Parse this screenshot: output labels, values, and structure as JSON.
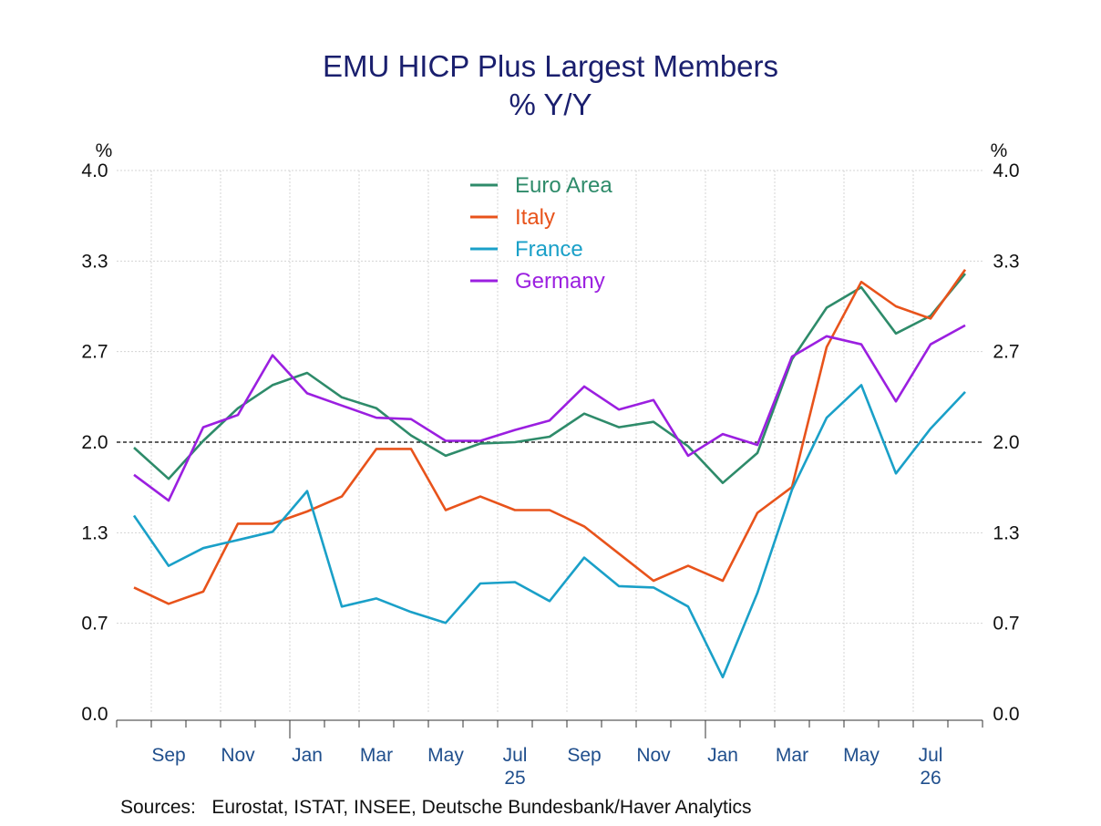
{
  "chart_data": {
    "type": "line",
    "title": "EMU HICP Plus Largest Members",
    "subtitle": "% Y/Y",
    "ylabel_left": "%",
    "ylabel_right": "%",
    "ylim": [
      0.0,
      4.0
    ],
    "yticks": [
      "0.0",
      "0.7",
      "1.3",
      "2.0",
      "2.7",
      "3.3",
      "4.0"
    ],
    "ytick_values": [
      0.0,
      0.667,
      1.333,
      2.0,
      2.667,
      3.333,
      4.0
    ],
    "reference_line": 2.0,
    "grid": true,
    "legend_position": "top-center",
    "x": [
      "2024-08",
      "2024-09",
      "2024-10",
      "2024-11",
      "2024-12",
      "2025-01",
      "2025-02",
      "2025-03",
      "2025-04",
      "2025-05",
      "2025-06",
      "2025-07",
      "2025-08",
      "2025-09",
      "2025-10",
      "2025-11",
      "2025-12",
      "2026-01",
      "2026-02",
      "2026-03",
      "2026-04",
      "2026-05",
      "2026-06",
      "2026-07",
      "2026-08"
    ],
    "xtick_labels": [
      {
        "label": "Sep",
        "index": 1
      },
      {
        "label": "Nov",
        "index": 3
      },
      {
        "label": "Jan",
        "index": 5
      },
      {
        "label": "Mar",
        "index": 7
      },
      {
        "label": "May",
        "index": 9
      },
      {
        "label": "Jul",
        "index": 11
      },
      {
        "label": "Sep",
        "index": 13
      },
      {
        "label": "Nov",
        "index": 15
      },
      {
        "label": "Jan",
        "index": 17
      },
      {
        "label": "Mar",
        "index": 19
      },
      {
        "label": "May",
        "index": 21
      },
      {
        "label": "Jul",
        "index": 23
      }
    ],
    "year_labels": [
      {
        "label": "25",
        "index": 11
      },
      {
        "label": "26",
        "index": 23
      }
    ],
    "series": [
      {
        "name": "Euro Area",
        "color": "#2e8b6a",
        "values": [
          1.96,
          1.73,
          2.01,
          2.25,
          2.42,
          2.51,
          2.33,
          2.25,
          2.05,
          1.9,
          1.99,
          2.0,
          2.04,
          2.21,
          2.11,
          2.15,
          1.97,
          1.7,
          1.92,
          2.61,
          2.99,
          3.14,
          2.8,
          2.93,
          3.24
        ]
      },
      {
        "name": "Italy",
        "color": "#e8531b",
        "values": [
          0.93,
          0.81,
          0.9,
          1.4,
          1.4,
          1.49,
          1.6,
          1.95,
          1.95,
          1.5,
          1.6,
          1.5,
          1.5,
          1.38,
          1.18,
          0.98,
          1.09,
          0.98,
          1.48,
          1.67,
          2.7,
          3.18,
          3.0,
          2.91,
          3.27
        ]
      },
      {
        "name": "France",
        "color": "#1aa0c8",
        "values": [
          1.46,
          1.09,
          1.22,
          1.28,
          1.34,
          1.64,
          0.79,
          0.85,
          0.75,
          0.67,
          0.96,
          0.97,
          0.83,
          1.15,
          0.94,
          0.93,
          0.79,
          0.27,
          0.89,
          1.65,
          2.18,
          2.42,
          1.77,
          2.1,
          2.37
        ]
      },
      {
        "name": "Germany",
        "color": "#9b1fe0",
        "values": [
          1.76,
          1.57,
          2.11,
          2.2,
          2.64,
          2.36,
          2.27,
          2.18,
          2.17,
          2.01,
          2.01,
          2.09,
          2.16,
          2.41,
          2.24,
          2.31,
          1.9,
          2.06,
          1.98,
          2.63,
          2.78,
          2.72,
          2.3,
          2.72,
          2.86
        ]
      }
    ]
  },
  "sources_text": "Sources:   Eurostat, ISTAT, INSEE, Deutsche Bundesbank/Haver Analytics"
}
